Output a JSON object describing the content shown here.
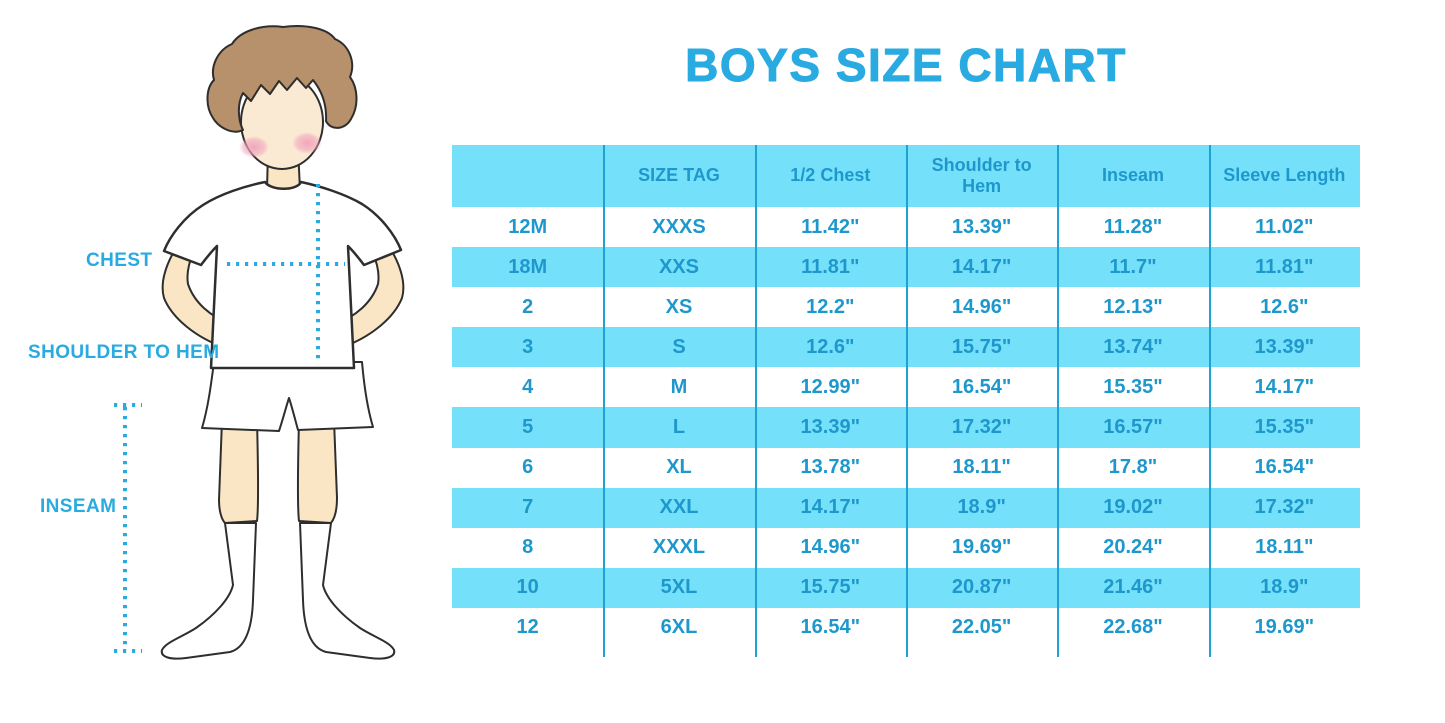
{
  "title": "BOYS SIZE CHART",
  "diagram": {
    "labels": {
      "chest": "CHEST",
      "shoulder_to_hem": "SHOULDER TO HEM",
      "inseam": "INSEAM"
    }
  },
  "chart_data": {
    "type": "table",
    "title": "BOYS SIZE CHART",
    "columns": [
      "",
      "SIZE TAG",
      "1/2 Chest",
      "Shoulder to Hem",
      "Inseam",
      "Sleeve Length"
    ],
    "rows": [
      [
        "12M",
        "XXXS",
        "11.42\"",
        "13.39\"",
        "11.28\"",
        "11.02\""
      ],
      [
        "18M",
        "XXS",
        "11.81\"",
        "14.17\"",
        "11.7\"",
        "11.81\""
      ],
      [
        "2",
        "XS",
        "12.2\"",
        "14.96\"",
        "12.13\"",
        "12.6\""
      ],
      [
        "3",
        "S",
        "12.6\"",
        "15.75\"",
        "13.74\"",
        "13.39\""
      ],
      [
        "4",
        "M",
        "12.99\"",
        "16.54\"",
        "15.35\"",
        "14.17\""
      ],
      [
        "5",
        "L",
        "13.39\"",
        "17.32\"",
        "16.57\"",
        "15.35\""
      ],
      [
        "6",
        "XL",
        "13.78\"",
        "18.11\"",
        "17.8\"",
        "16.54\""
      ],
      [
        "7",
        "XXL",
        "14.17\"",
        "18.9\"",
        "19.02\"",
        "17.32\""
      ],
      [
        "8",
        "XXXL",
        "14.96\"",
        "19.69\"",
        "20.24\"",
        "18.11\""
      ],
      [
        "10",
        "5XL",
        "15.75\"",
        "20.87\"",
        "21.46\"",
        "18.9\""
      ],
      [
        "12",
        "6XL",
        "16.54\"",
        "22.05\"",
        "22.68\"",
        "19.69\""
      ]
    ],
    "layout": {
      "striping": "header and every second data row filled cyan, others white",
      "grid": "vertical column separators only, no outer border"
    }
  },
  "colors": {
    "accent_blue": "#29ABE2",
    "row_cyan": "#75E0FA",
    "table_text": "#1E98CC",
    "divider": "#21A0D4",
    "skin": "#FAE6C4",
    "hair": "#B6916B",
    "blush": "#F0A3BC"
  }
}
